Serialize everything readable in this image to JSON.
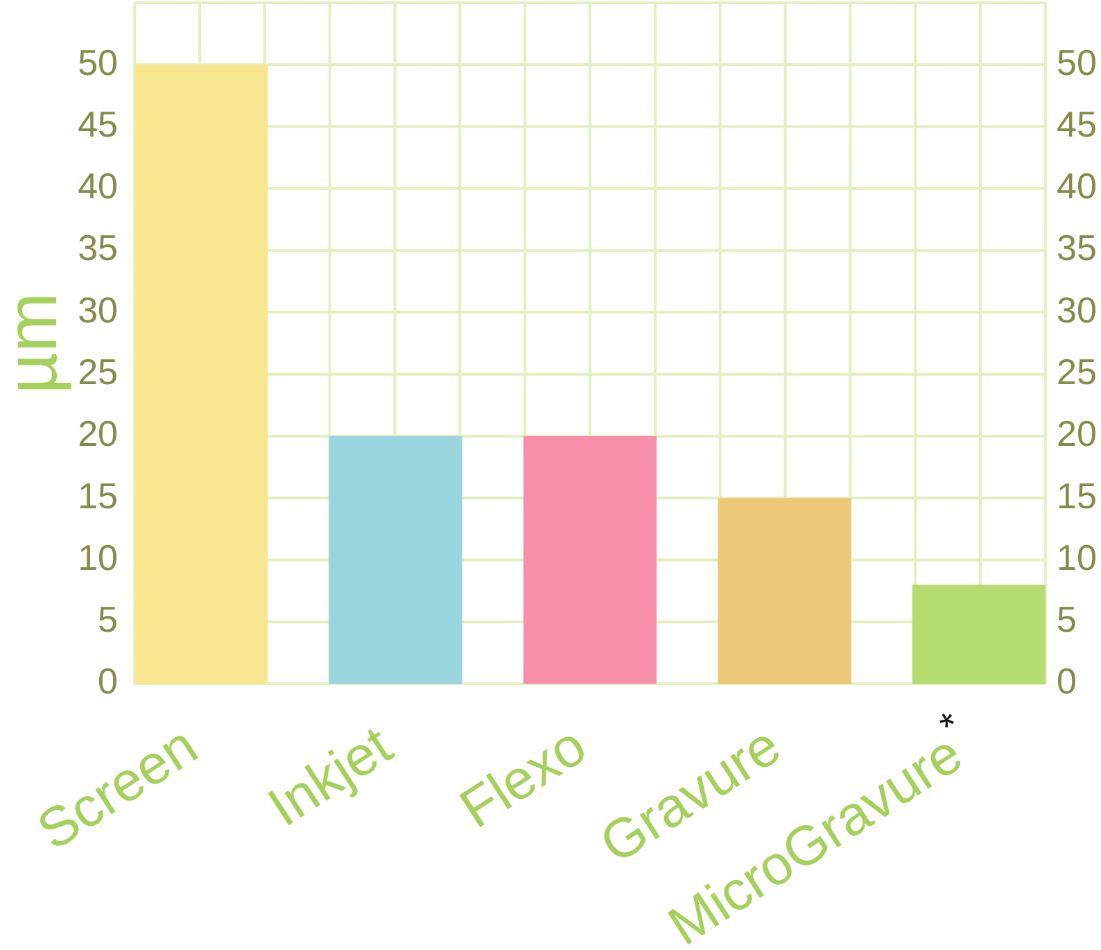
{
  "chart_data": {
    "type": "bar",
    "categories": [
      "Screen",
      "Inkjet",
      "Flexo",
      "Gravure",
      "MicroGravure$^{*}$"
    ],
    "values": [
      50,
      20,
      20,
      15,
      8
    ],
    "colors": [
      "#f8e690",
      "#9ad4de",
      "#f78fab",
      "#ecc978",
      "#b5dc6e"
    ],
    "ylabel": "µm",
    "ylim": [
      0,
      55
    ],
    "yticks": [
      0,
      5,
      10,
      15,
      20,
      25,
      30,
      35,
      40,
      45,
      50
    ],
    "y2lim": [
      0,
      55
    ],
    "y2ticks": [
      0,
      5,
      10,
      15,
      20,
      25,
      30,
      35,
      40,
      45,
      50
    ],
    "grid": true
  }
}
